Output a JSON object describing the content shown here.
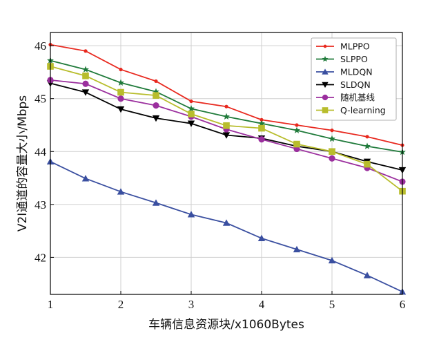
{
  "chart_data": {
    "type": "line",
    "xlabel": "车辆信息资源块/x1060Bytes",
    "ylabel": "V2I通道的容量大小/Mbps",
    "x": [
      1,
      1.5,
      2,
      2.5,
      3,
      3.5,
      4,
      4.5,
      5,
      5.5,
      6
    ],
    "xlim": [
      1,
      6
    ],
    "ylim": [
      41.3,
      46.25
    ],
    "xticks": [
      "1",
      "2",
      "3",
      "4",
      "5",
      "6"
    ],
    "yticks": [
      "42",
      "43",
      "44",
      "45",
      "46"
    ],
    "grid": true,
    "legend_position": "top-right",
    "series": [
      {
        "name": "MLPPO",
        "color": "#e8281e",
        "marker": "dot",
        "values": [
          46.02,
          45.9,
          45.55,
          45.33,
          44.95,
          44.85,
          44.6,
          44.5,
          44.4,
          44.28,
          44.12
        ]
      },
      {
        "name": "SLPPO",
        "color": "#1f7a3a",
        "marker": "star",
        "values": [
          45.72,
          45.55,
          45.3,
          45.13,
          44.81,
          44.66,
          44.53,
          44.4,
          44.24,
          44.1,
          43.99
        ]
      },
      {
        "name": "MLDQN",
        "color": "#3a4fa0",
        "marker": "triangle",
        "values": [
          43.81,
          43.49,
          43.24,
          43.03,
          42.81,
          42.65,
          42.36,
          42.15,
          41.94,
          41.66,
          41.35
        ]
      },
      {
        "name": "SLDQN",
        "color": "#000000",
        "marker": "triangle-down",
        "values": [
          45.29,
          45.12,
          44.8,
          44.63,
          44.53,
          44.31,
          44.25,
          44.1,
          44.0,
          43.81,
          43.65
        ]
      },
      {
        "name": "随机基线",
        "color": "#9b2f9e",
        "marker": "circle",
        "values": [
          45.35,
          45.28,
          45.0,
          44.87,
          44.66,
          44.42,
          44.23,
          44.05,
          43.87,
          43.69,
          43.43
        ]
      },
      {
        "name": "Q-learning",
        "color": "#b8bd2c",
        "marker": "square",
        "values": [
          45.61,
          45.43,
          45.12,
          45.06,
          44.71,
          44.49,
          44.44,
          44.14,
          44.0,
          43.76,
          43.25
        ]
      }
    ]
  }
}
